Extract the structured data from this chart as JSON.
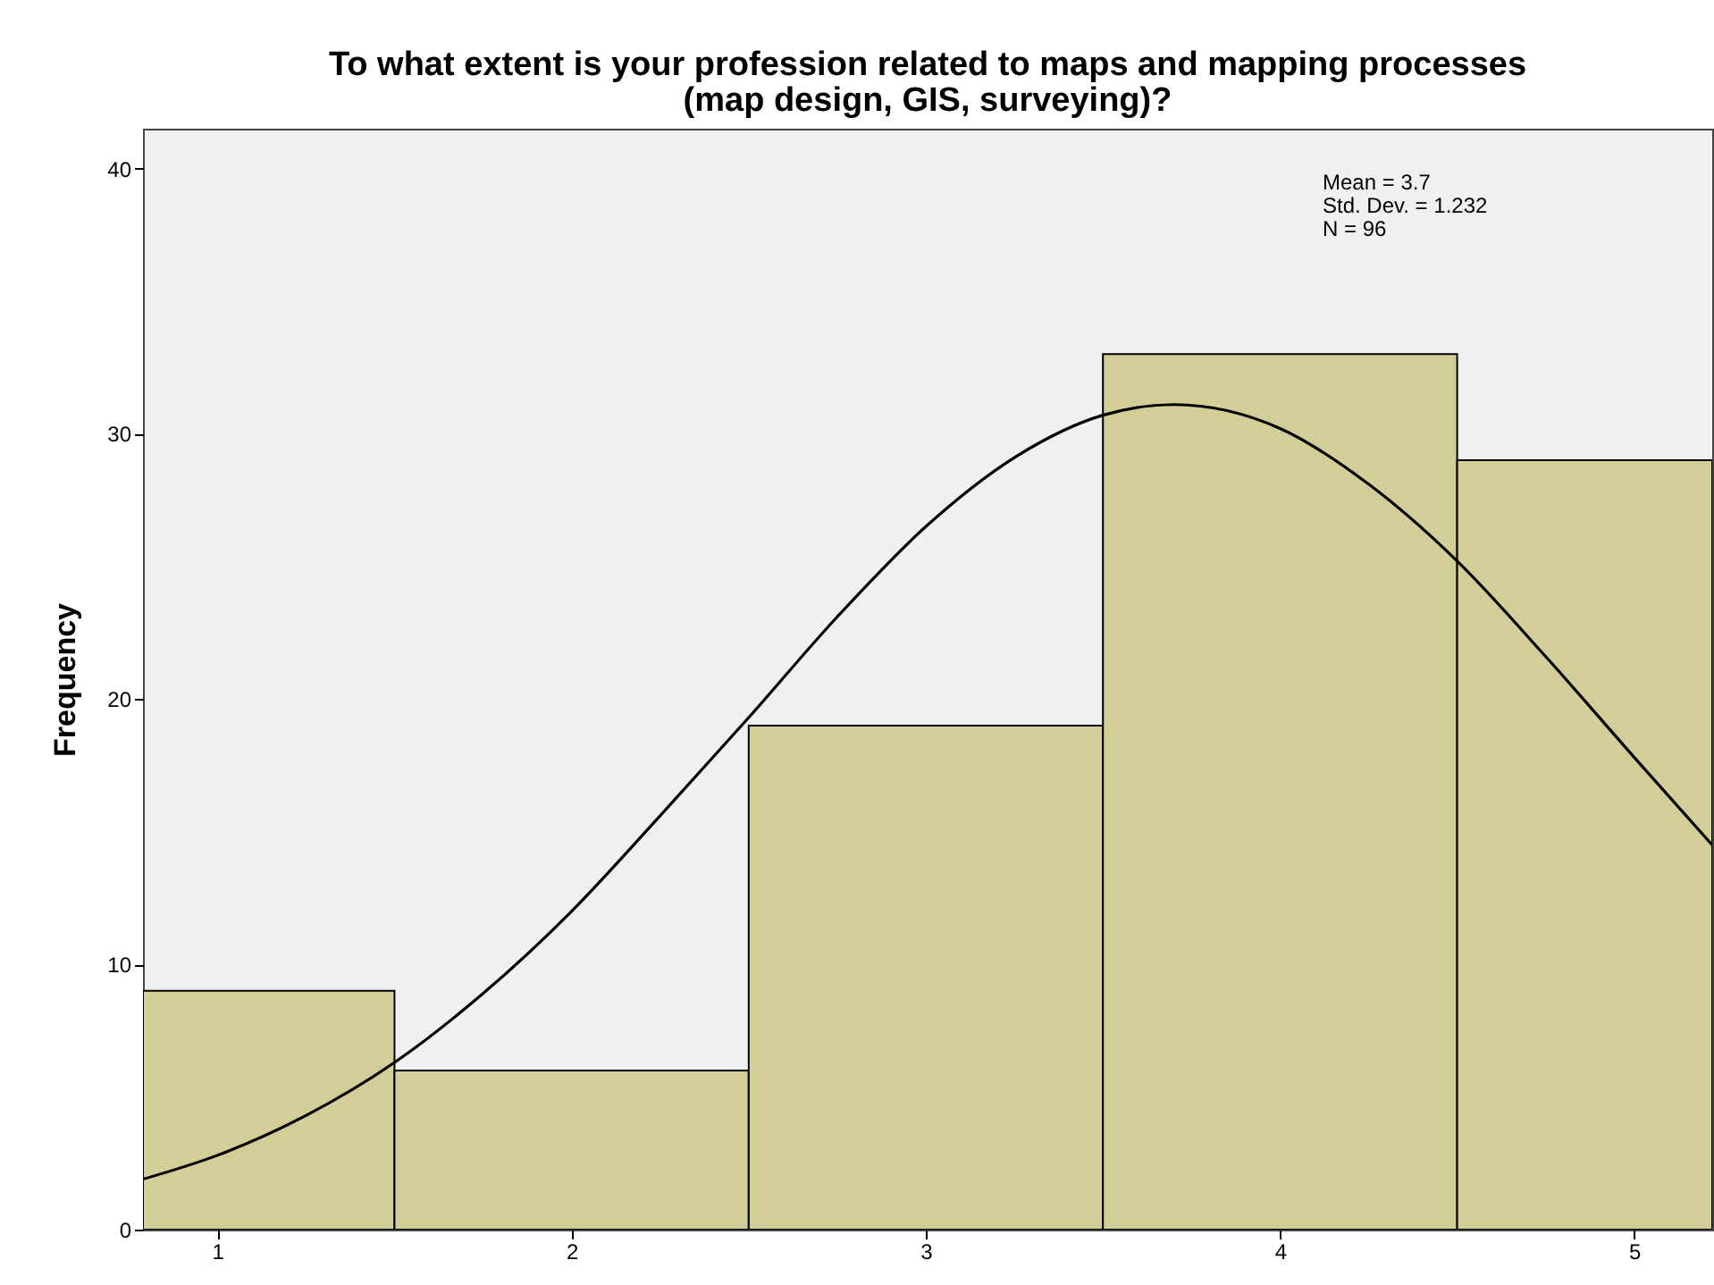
{
  "chart_data": {
    "type": "histogram",
    "title": "To what extent is your profession related to maps and mapping processes\n(map design, GIS, surveying)?",
    "ylabel": "Frequency",
    "xlim": [
      0.79,
      5.22
    ],
    "xticks": [
      1,
      2,
      3,
      4,
      5
    ],
    "ylim": [
      0,
      41.5
    ],
    "yticks": [
      0,
      10,
      20,
      30,
      40
    ],
    "grid": false,
    "series": [
      {
        "type": "histogram",
        "color": "#d3ce97",
        "bins": [
          0.79,
          1.5,
          2.5,
          3.5,
          4.5,
          5.22
        ],
        "values": [
          9,
          6,
          19,
          33,
          29
        ]
      },
      {
        "type": "line",
        "color": "#000000",
        "x": [
          0.79,
          1.0,
          1.25,
          1.5,
          1.75,
          2.0,
          2.25,
          2.5,
          2.75,
          3.0,
          3.25,
          3.5,
          3.7,
          4.0,
          4.25,
          4.5,
          4.75,
          5.0,
          5.22
        ],
        "values": [
          1.9,
          2.8,
          4.3,
          6.3,
          8.9,
          12.0,
          15.6,
          19.3,
          23.1,
          26.5,
          29.1,
          30.7,
          31.1,
          30.2,
          28.1,
          25.2,
          21.6,
          17.8,
          14.5
        ]
      }
    ],
    "annotations": [
      "Mean = 3.7",
      "Std. Dev. = 1.232",
      "N = 96"
    ]
  }
}
